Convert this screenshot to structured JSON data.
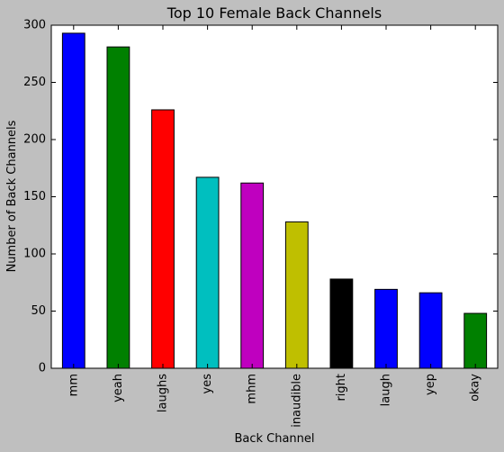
{
  "chart_data": {
    "type": "bar",
    "title": "Top 10 Female Back Channels",
    "xlabel": "Back Channel",
    "ylabel": "Number of Back Channels",
    "categories": [
      "mm",
      "yeah",
      "laughs",
      "yes",
      "mhm",
      "inaudible",
      "right",
      "laugh",
      "yep",
      "okay"
    ],
    "values": [
      293,
      281,
      226,
      167,
      162,
      128,
      78,
      69,
      66,
      48
    ],
    "colors": [
      "#0000ff",
      "#008000",
      "#ff0000",
      "#00bfbf",
      "#bf00bf",
      "#bfbf00",
      "#000000",
      "#0000ff",
      "#0000ff",
      "#008000"
    ],
    "ylim": [
      0,
      300
    ],
    "yticks": [
      "0",
      "50",
      "100",
      "150",
      "200",
      "250",
      "300"
    ],
    "grid": false,
    "legend": false
  }
}
